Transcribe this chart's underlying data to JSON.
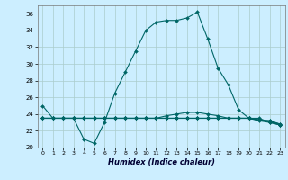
{
  "title": "",
  "xlabel": "Humidex (Indice chaleur)",
  "bg_color": "#cceeff",
  "grid_color": "#aacccc",
  "line_color": "#006666",
  "xlim": [
    -0.5,
    23.5
  ],
  "ylim": [
    20,
    37
  ],
  "yticks": [
    20,
    22,
    24,
    26,
    28,
    30,
    32,
    34,
    36
  ],
  "xticks": [
    0,
    1,
    2,
    3,
    4,
    5,
    6,
    7,
    8,
    9,
    10,
    11,
    12,
    13,
    14,
    15,
    16,
    17,
    18,
    19,
    20,
    21,
    22,
    23
  ],
  "series": [
    [
      25.0,
      23.5,
      23.5,
      23.5,
      21.0,
      20.5,
      23.0,
      26.5,
      29.0,
      31.5,
      34.0,
      35.0,
      35.2,
      35.2,
      35.5,
      36.2,
      33.0,
      29.5,
      27.5,
      24.5,
      23.5,
      23.5,
      23.0,
      22.7
    ],
    [
      23.5,
      23.5,
      23.5,
      23.5,
      23.5,
      23.5,
      23.5,
      23.5,
      23.5,
      23.5,
      23.5,
      23.5,
      23.8,
      24.0,
      24.2,
      24.2,
      24.0,
      23.8,
      23.5,
      23.5,
      23.5,
      23.3,
      23.2,
      22.8
    ],
    [
      23.5,
      23.5,
      23.5,
      23.5,
      23.5,
      23.5,
      23.5,
      23.5,
      23.5,
      23.5,
      23.5,
      23.5,
      23.5,
      23.5,
      23.5,
      23.5,
      23.5,
      23.5,
      23.5,
      23.5,
      23.5,
      23.3,
      23.2,
      22.8
    ],
    [
      23.5,
      23.5,
      23.5,
      23.5,
      23.5,
      23.5,
      23.5,
      23.5,
      23.5,
      23.5,
      23.5,
      23.5,
      23.5,
      23.5,
      23.5,
      23.5,
      23.5,
      23.5,
      23.5,
      23.5,
      23.5,
      23.3,
      23.1,
      22.7
    ],
    [
      23.5,
      23.5,
      23.5,
      23.5,
      23.5,
      23.5,
      23.5,
      23.5,
      23.5,
      23.5,
      23.5,
      23.5,
      23.5,
      23.5,
      23.5,
      23.5,
      23.5,
      23.5,
      23.5,
      23.5,
      23.5,
      23.2,
      23.0,
      22.7
    ]
  ]
}
